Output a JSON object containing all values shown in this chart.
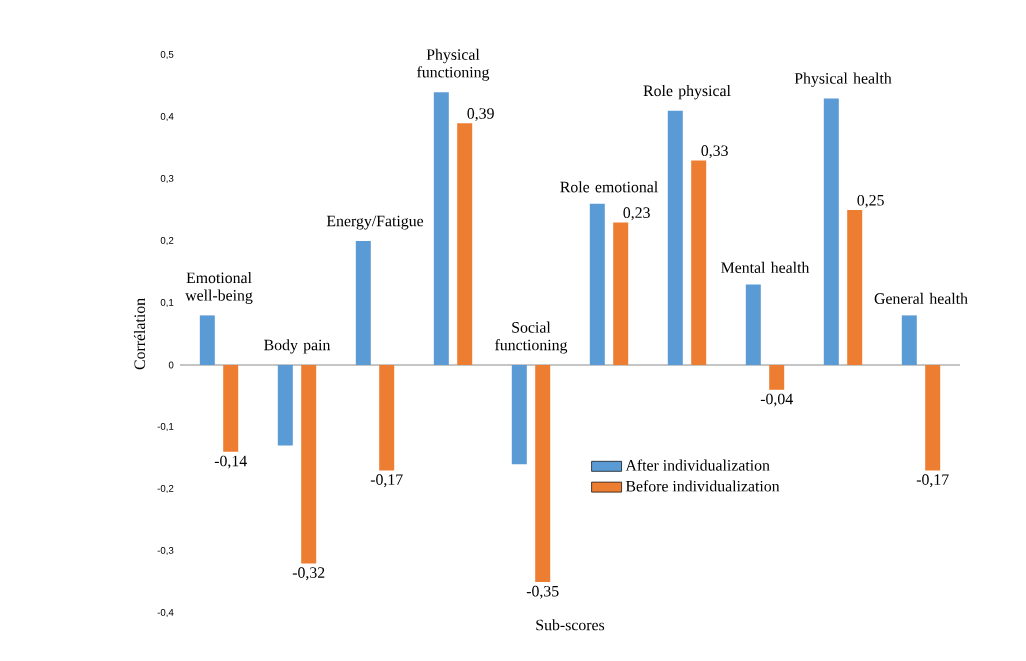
{
  "chart_data": {
    "type": "bar",
    "xlabel": "Sub-scores",
    "ylabel": "Corrélation",
    "categories": [
      "Emotional well-being",
      "Body pain",
      "Energy/Fatigue",
      "Physical functioning",
      "Social functioning",
      "Role emotional",
      "Role physical",
      "Mental health",
      "Physical health",
      "General health"
    ],
    "series": [
      {
        "name": "After individualization",
        "color": "#5b9bd5",
        "values": [
          0.08,
          -0.13,
          0.2,
          0.44,
          -0.16,
          0.26,
          0.41,
          0.13,
          0.43,
          0.08
        ]
      },
      {
        "name": "Before individualization",
        "color": "#ed7d31",
        "values": [
          -0.14,
          -0.32,
          -0.17,
          0.39,
          -0.35,
          0.23,
          0.33,
          -0.04,
          0.25,
          -0.17
        ],
        "value_labels": [
          "-0,14",
          "-0,32",
          "-0,17",
          "0,39",
          "-0,35",
          "0,23",
          "0,33",
          "-0,04",
          "0,25",
          "-0,17"
        ]
      }
    ],
    "ylim": [
      -0.4,
      0.5
    ],
    "yticks": [
      {
        "value": -0.4,
        "label": "-0,4"
      },
      {
        "value": -0.3,
        "label": "-0,3"
      },
      {
        "value": -0.2,
        "label": "-0,2"
      },
      {
        "value": -0.1,
        "label": "-0,1"
      },
      {
        "value": 0,
        "label": "0"
      },
      {
        "value": 0.1,
        "label": "0,1"
      },
      {
        "value": 0.2,
        "label": "0,2"
      },
      {
        "value": 0.3,
        "label": "0,3"
      },
      {
        "value": 0.4,
        "label": "0,4"
      },
      {
        "value": 0.5,
        "label": "0,5"
      }
    ],
    "legend": "bottom right"
  }
}
